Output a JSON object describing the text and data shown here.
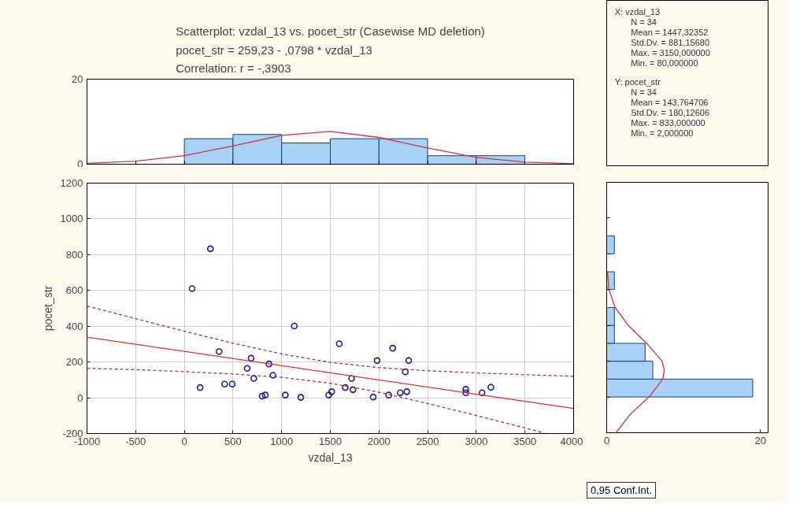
{
  "chart_data": [
    {
      "type": "histogram",
      "title": "Scatterplot: vzdal_13 vs. pocet_str (Casewise MD deletion)\npocet_str = 259,23 - ,0798  * vzdal_13\nCorrelation: r = -,3903",
      "bins": [
        0,
        500,
        1000,
        1500,
        2000,
        2500,
        3000,
        3500
      ],
      "values": [
        6,
        7,
        5,
        6,
        6,
        2,
        2
      ],
      "color": "#a9d0f5",
      "xlim": [
        -1000,
        4000
      ],
      "xticks": [
        {
          "value": -1000,
          "label": null
        },
        {
          "value": -500,
          "label": null
        },
        {
          "value": 0,
          "label": null
        },
        {
          "value": 500,
          "label": null
        },
        {
          "value": 1000,
          "label": null
        },
        {
          "value": 1500,
          "label": null
        },
        {
          "value": 2000,
          "label": null
        },
        {
          "value": 2500,
          "label": null
        },
        {
          "value": 3000,
          "label": null
        },
        {
          "value": 3500,
          "label": null
        },
        {
          "value": 4000,
          "label": null
        }
      ],
      "ylim": [
        0,
        20
      ],
      "yticks": [
        0,
        20
      ],
      "tick_labels": "y",
      "series": [
        {
          "type": "line",
          "color": "#cc3344",
          "x": [
            -1000,
            -500,
            0,
            500,
            1000,
            1500,
            2000,
            2500,
            3000,
            3500,
            4000
          ],
          "values": [
            0.2,
            0.7,
            2.0,
            4.3,
            6.8,
            7.7,
            6.3,
            3.8,
            1.6,
            0.5,
            0.1
          ]
        }
      ]
    },
    {
      "type": "scatter",
      "xlabel": "vzdal_13",
      "ylabel": "pocet_str",
      "xlim": [
        -1000,
        4000
      ],
      "xticks": [
        -1000,
        -500,
        0,
        500,
        1000,
        1500,
        2000,
        2500,
        3000,
        3500,
        4000
      ],
      "ylim": [
        -200,
        1200
      ],
      "yticks": [
        -200,
        0,
        200,
        400,
        600,
        800,
        1000,
        1200
      ],
      "grid": true,
      "annotations": [
        "0,95 Conf.Int."
      ],
      "series": [
        {
          "type": "scatter",
          "marker": "circle",
          "color": "#1c1c8c",
          "x": [
            80,
            268,
            162,
            357,
            414,
            492,
            646,
            686,
            714,
            870,
            911,
            800,
            832,
            1038,
            1130,
            1197,
            1484,
            1514,
            1592,
            1654,
            1719,
            1732,
            1941,
            1981,
            2100,
            2141,
            2219,
            2270,
            2286,
            2305,
            2892,
            2892,
            3059,
            3150
          ],
          "values": [
            610,
            833,
            57,
            258,
            76,
            76,
            164,
            221,
            108,
            189,
            126,
            9,
            15,
            15,
            401,
            2,
            15,
            34,
            302,
            57,
            108,
            45,
            4,
            208,
            15,
            277,
            28,
            145,
            34,
            208,
            47,
            28,
            28,
            59
          ]
        },
        {
          "type": "line",
          "color": "#e03030",
          "line_style": "solid",
          "x": [
            -1000,
            4000
          ],
          "values": [
            339.0,
            -60.0
          ]
        },
        {
          "type": "line",
          "color": "#b03040",
          "line_style": "dashed",
          "x": [
            -1000,
            -500,
            0,
            500,
            1000,
            1500,
            2000,
            2500,
            3000,
            3500,
            4000
          ],
          "values": [
            513,
            442,
            372,
            305,
            245,
            198,
            168,
            151,
            139,
            129,
            120
          ]
        },
        {
          "type": "line",
          "color": "#b03040",
          "line_style": "dashed",
          "x": [
            -1000,
            -500,
            0,
            500,
            1000,
            1500,
            2000,
            2500,
            3000,
            3500,
            3700
          ],
          "values": [
            165,
            157,
            146,
            133,
            114,
            81,
            31,
            -32,
            -99,
            -169,
            -198
          ]
        }
      ]
    },
    {
      "type": "histogram",
      "orientation": "horizontal",
      "bins": [
        0,
        100,
        200,
        300,
        400,
        500,
        600,
        700,
        800,
        900
      ],
      "values": [
        19,
        6,
        5,
        1,
        1,
        0,
        1,
        0,
        1
      ],
      "color": "#a9d0f5",
      "xlim": [
        0,
        21
      ],
      "xticks": [
        0,
        20
      ],
      "ylim": [
        -200,
        1200
      ],
      "yticks": [
        {
          "value": -200,
          "label": null
        },
        {
          "value": 0,
          "label": null
        },
        {
          "value": 200,
          "label": null
        },
        {
          "value": 400,
          "label": null
        },
        {
          "value": 600,
          "label": null
        },
        {
          "value": 800,
          "label": null
        },
        {
          "value": 1000,
          "label": null
        },
        {
          "value": 1200,
          "label": null
        }
      ],
      "tick_labels": "x",
      "series": [
        {
          "type": "line",
          "color": "#cc3344",
          "x": [
            -200,
            -100,
            0,
            100,
            150,
            200,
            300,
            400,
            500,
            600,
            700
          ],
          "values": [
            1.2,
            3.0,
            5.5,
            7.3,
            7.5,
            7.2,
            5.2,
            2.8,
            1.1,
            0.3,
            0.1
          ]
        }
      ]
    },
    {
      "type": "other",
      "annotations": [
        "X:  vzdal_13",
        "N = 34",
        "Mean = 1447,32352",
        "Std.Dv. = 881,15680",
        "Max. = 3150,000000",
        "Min. = 80,000000",
        "Y:  pocet_str",
        "N = 34",
        "Mean = 143,764706",
        "Std.Dv. = 180,12606",
        "Max. = 833,000000",
        "Min. = 2,000000"
      ]
    }
  ]
}
